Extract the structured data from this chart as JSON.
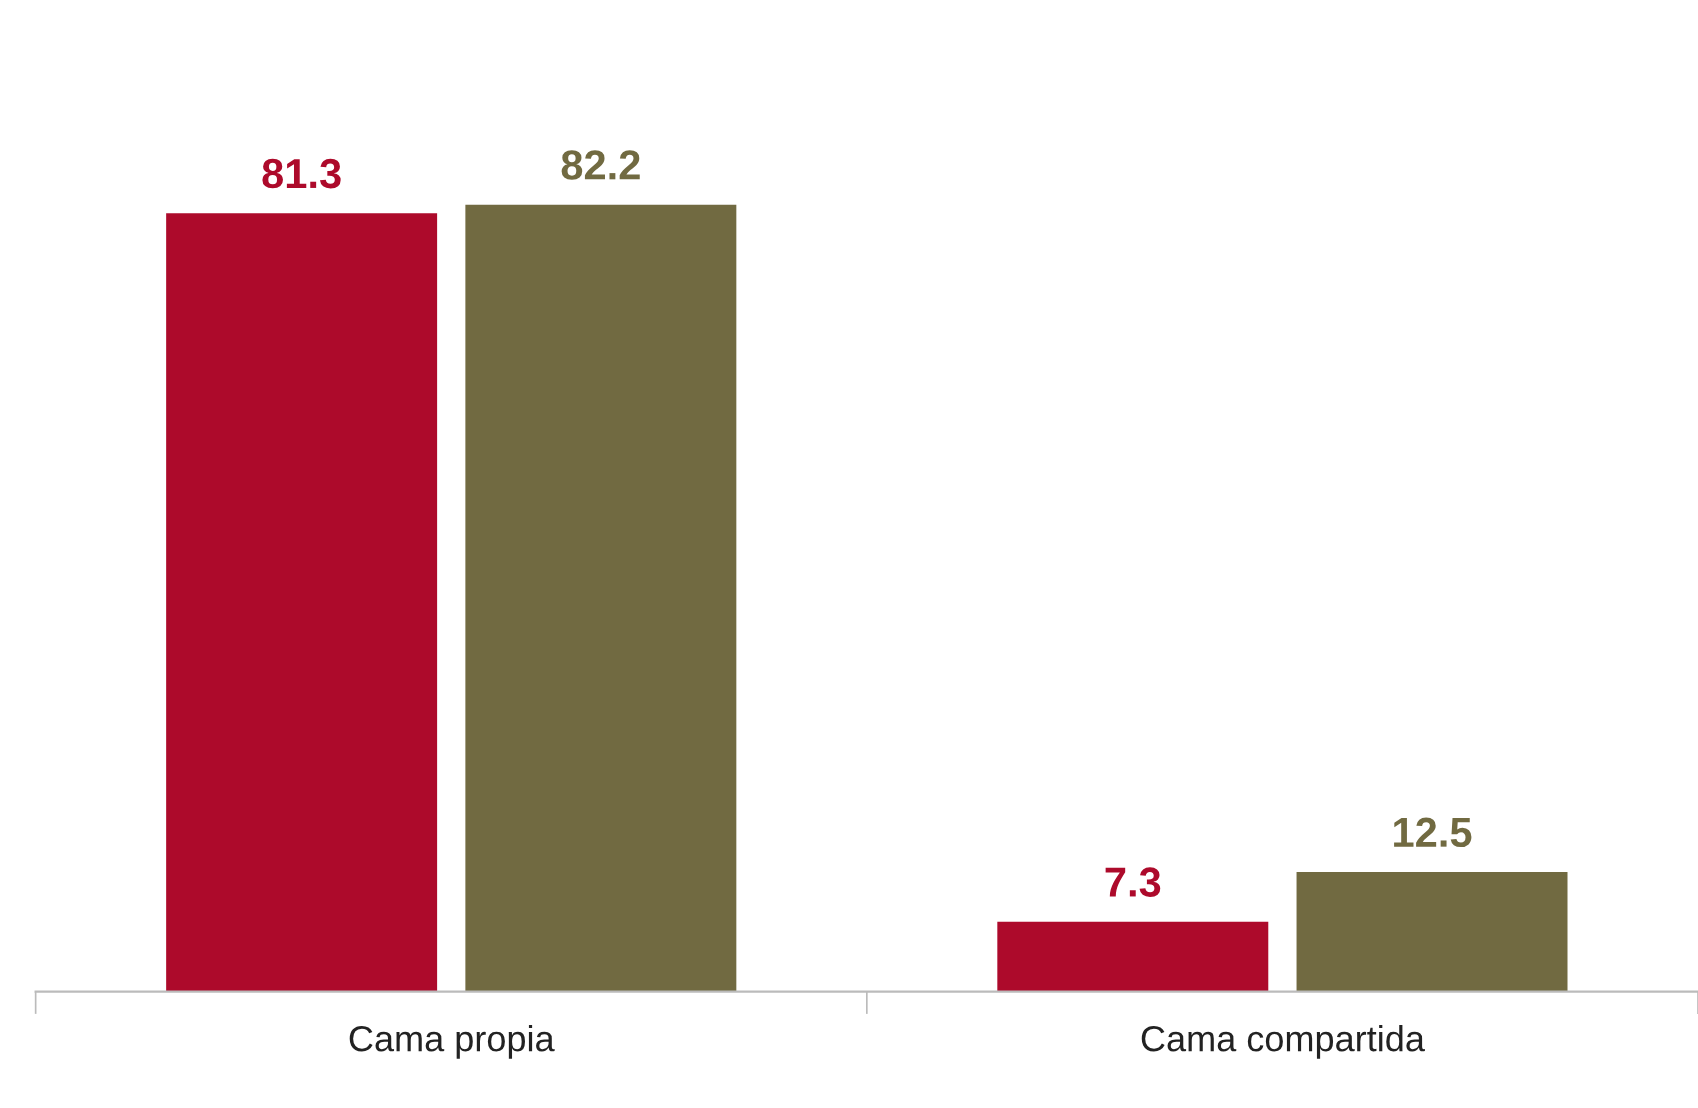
{
  "chart_data": {
    "type": "bar",
    "categories": [
      "Cama propia",
      "Cama compartida"
    ],
    "series": [
      {
        "color": "#ad0a2b",
        "values": [
          81.3,
          7.3
        ]
      },
      {
        "color": "#716a41",
        "values": [
          82.2,
          12.5
        ]
      }
    ],
    "data_labels": true,
    "grid": false,
    "legend": false
  }
}
